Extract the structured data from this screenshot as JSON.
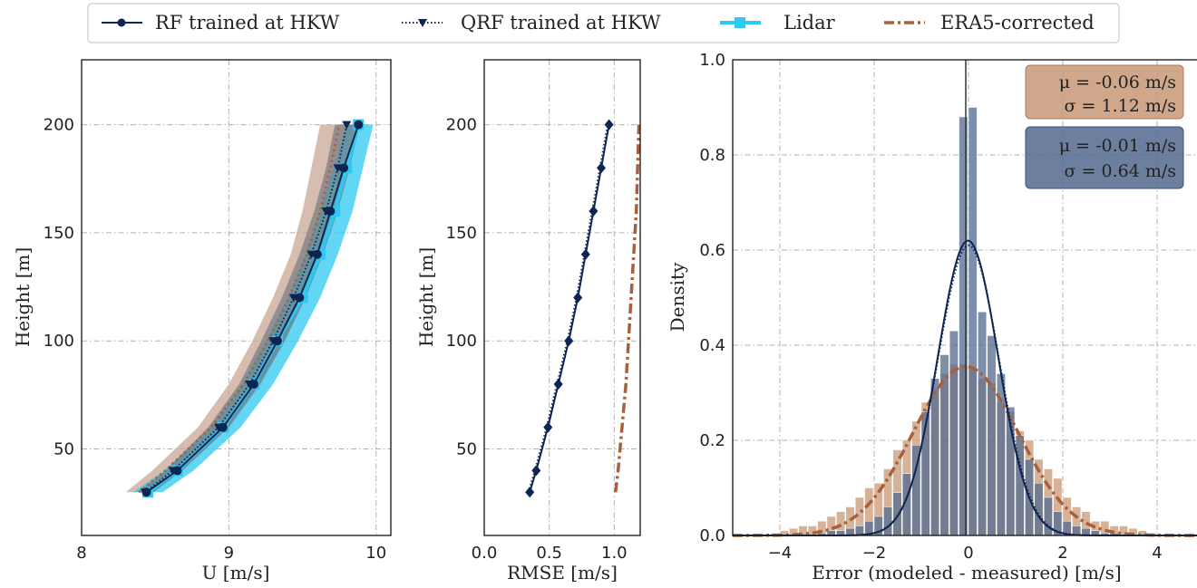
{
  "legend": {
    "entries": [
      {
        "label": "RF trained at HKW",
        "color": "#0d2552",
        "style": "solid-circle"
      },
      {
        "label": "QRF trained at HKW",
        "color": "#0d2552",
        "style": "dotted-triangle"
      },
      {
        "label": "Lidar",
        "color": "#2ec8f0",
        "style": "solid-square"
      },
      {
        "label": "ERA5-corrected",
        "color": "#a9603a",
        "style": "dashdot"
      }
    ]
  },
  "colors": {
    "rf": "#0d2552",
    "qrf": "#0d2552",
    "lidar": "#2ec8f0",
    "era5": "#a9603a",
    "hist_rf": "#52698e",
    "hist_era5": "#c89877",
    "band_era5": "#c9a696",
    "band_lidar": "#2ec8f0",
    "band_gray": "#6f7680"
  },
  "chart_data": [
    {
      "type": "line",
      "xlabel": "U [m/s]",
      "ylabel": "Height [m]",
      "xlim": [
        8,
        10.1
      ],
      "ylim": [
        10,
        230
      ],
      "xticks": [
        "8",
        "9",
        "10"
      ],
      "yticks": [
        "50",
        "100",
        "150",
        "200"
      ],
      "xtick_values": [
        8,
        9,
        10
      ],
      "ytick_values": [
        50,
        100,
        150,
        200
      ],
      "grid": true,
      "heights": [
        30,
        40,
        60,
        80,
        100,
        120,
        140,
        160,
        180,
        200
      ],
      "series": [
        {
          "name": "RF trained at HKW",
          "values": [
            8.44,
            8.65,
            8.96,
            9.17,
            9.33,
            9.48,
            9.6,
            9.69,
            9.78,
            9.88
          ]
        },
        {
          "name": "QRF trained at HKW",
          "values": [
            8.43,
            8.62,
            8.93,
            9.14,
            9.3,
            9.44,
            9.56,
            9.66,
            9.74,
            9.8
          ]
        },
        {
          "name": "Lidar",
          "values": [
            8.45,
            8.65,
            8.96,
            9.17,
            9.33,
            9.5,
            9.62,
            9.72,
            9.8,
            9.88
          ]
        },
        {
          "name": "ERA5-corrected",
          "values": [
            8.39,
            8.57,
            8.88,
            9.1,
            9.27,
            9.41,
            9.53,
            9.62,
            9.69,
            9.75
          ]
        }
      ],
      "bands": [
        {
          "of": "ERA5-corrected",
          "lower": [
            8.3,
            8.48,
            8.79,
            9.0,
            9.16,
            9.3,
            9.42,
            9.5,
            9.56,
            9.62
          ],
          "upper": [
            8.48,
            8.69,
            9.0,
            9.22,
            9.38,
            9.52,
            9.63,
            9.72,
            9.79,
            9.85
          ]
        },
        {
          "of": "Lidar",
          "lower": [
            8.35,
            8.56,
            8.88,
            9.09,
            9.25,
            9.4,
            9.52,
            9.62,
            9.71,
            9.8
          ],
          "upper": [
            8.55,
            8.76,
            9.08,
            9.3,
            9.47,
            9.62,
            9.74,
            9.84,
            9.91,
            9.98
          ]
        },
        {
          "of": "QRF trained at HKW",
          "lower": [
            8.38,
            8.57,
            8.86,
            9.07,
            9.22,
            9.36,
            9.48,
            9.58,
            9.66,
            9.72
          ],
          "upper": [
            8.49,
            8.68,
            9.0,
            9.21,
            9.38,
            9.52,
            9.64,
            9.74,
            9.82,
            9.89
          ]
        }
      ]
    },
    {
      "type": "line",
      "xlabel": "RMSE [m/s]",
      "ylabel": "Height [m]",
      "xlim": [
        0,
        1.2
      ],
      "ylim": [
        10,
        230
      ],
      "xticks": [
        "0.0",
        "0.5",
        "1.0"
      ],
      "yticks": [
        "50",
        "100",
        "150",
        "200"
      ],
      "xtick_values": [
        0,
        0.5,
        1.0
      ],
      "ytick_values": [
        50,
        100,
        150,
        200
      ],
      "grid": true,
      "heights": [
        30,
        40,
        60,
        80,
        100,
        120,
        140,
        160,
        180,
        200
      ],
      "series": [
        {
          "name": "RF trained at HKW",
          "values": [
            0.35,
            0.4,
            0.49,
            0.57,
            0.65,
            0.72,
            0.78,
            0.84,
            0.9,
            0.96
          ]
        },
        {
          "name": "QRF trained at HKW",
          "values": [
            0.34,
            0.39,
            0.48,
            0.56,
            0.64,
            0.71,
            0.77,
            0.83,
            0.89,
            0.95
          ]
        },
        {
          "name": "ERA5-corrected",
          "values": [
            1.01,
            1.03,
            1.06,
            1.09,
            1.11,
            1.13,
            1.15,
            1.17,
            1.18,
            1.19
          ]
        }
      ]
    },
    {
      "type": "bar",
      "xlabel": "Error (modeled - measured) [m/s]",
      "ylabel": "Density",
      "xlim": [
        -5,
        5
      ],
      "ylim": [
        0,
        1.0
      ],
      "xticks": [
        "−4",
        "−2",
        "0",
        "2",
        "4"
      ],
      "yticks": [
        "0.0",
        "0.2",
        "0.4",
        "0.6",
        "0.8",
        "1.0"
      ],
      "xtick_values": [
        -4,
        -2,
        0,
        2,
        4
      ],
      "ytick_values": [
        0,
        0.2,
        0.4,
        0.6,
        0.8,
        1.0
      ],
      "grid": true,
      "bin_width": 0.2,
      "bin_starts": [
        -4.4,
        -4.2,
        -4.0,
        -3.8,
        -3.6,
        -3.4,
        -3.2,
        -3.0,
        -2.8,
        -2.6,
        -2.4,
        -2.2,
        -2.0,
        -1.8,
        -1.6,
        -1.4,
        -1.2,
        -1.0,
        -0.8,
        -0.6,
        -0.4,
        -0.2,
        0.0,
        0.2,
        0.4,
        0.6,
        0.8,
        1.0,
        1.2,
        1.4,
        1.6,
        1.8,
        2.0,
        2.2,
        2.4,
        2.6,
        2.8,
        3.0,
        3.2,
        3.4,
        3.6,
        3.8,
        4.0
      ],
      "series": [
        {
          "name": "ERA5-corrected",
          "values": [
            0.0,
            0.005,
            0.01,
            0.015,
            0.02,
            0.02,
            0.03,
            0.04,
            0.05,
            0.06,
            0.08,
            0.1,
            0.11,
            0.14,
            0.18,
            0.2,
            0.24,
            0.28,
            0.31,
            0.34,
            0.36,
            0.36,
            0.35,
            0.33,
            0.32,
            0.28,
            0.26,
            0.22,
            0.2,
            0.16,
            0.14,
            0.12,
            0.08,
            0.06,
            0.05,
            0.03,
            0.03,
            0.02,
            0.02,
            0.015,
            0.01,
            0.005,
            0.0
          ]
        },
        {
          "name": "RF trained at HKW",
          "values": [
            0.0,
            0.0,
            0.0,
            0.0,
            0.0,
            0.0,
            0.005,
            0.01,
            0.01,
            0.015,
            0.02,
            0.03,
            0.04,
            0.06,
            0.09,
            0.13,
            0.19,
            0.26,
            0.33,
            0.38,
            0.43,
            0.88,
            0.9,
            0.47,
            0.42,
            0.34,
            0.27,
            0.21,
            0.16,
            0.11,
            0.08,
            0.05,
            0.03,
            0.02,
            0.015,
            0.01,
            0.005,
            0.005,
            0.0,
            0.0,
            0.0,
            0.0,
            0.0
          ]
        }
      ],
      "curves": [
        {
          "name": "RF trained at HKW",
          "mu": -0.01,
          "sigma": 0.64,
          "peak": 0.62
        },
        {
          "name": "QRF trained at HKW",
          "mu": 0.0,
          "sigma": 0.65,
          "peak": 0.61
        },
        {
          "name": "ERA5-corrected",
          "mu": -0.06,
          "sigma": 1.12,
          "peak": 0.355
        }
      ],
      "annotations": [
        {
          "lines": [
            "μ = -0.06 m/s",
            "σ = 1.12 m/s"
          ],
          "color": "#c89877"
        },
        {
          "lines": [
            "μ = -0.01 m/s",
            "σ = 0.64 m/s"
          ],
          "color": "#52698e"
        }
      ]
    }
  ]
}
